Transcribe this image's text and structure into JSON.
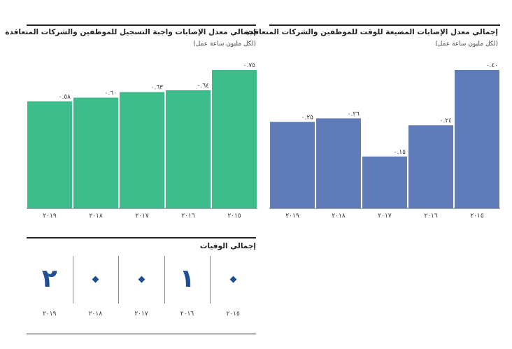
{
  "chart_data": [
    {
      "type": "bar",
      "title": "إجمالي معدل الإصابات واجبة التسجيل للموظفين والشركات المتعاقدة",
      "subtitle": "(لكل مليون ساعة عمل)",
      "categories": [
        "٢٠١٩",
        "٢٠١٨",
        "٢٠١٧",
        "٢٠١٦",
        "٢٠١٥"
      ],
      "values": [
        0.58,
        0.6,
        0.63,
        0.64,
        0.75
      ],
      "value_labels": [
        "٠.٥٨",
        "٠.٦٠",
        "٠.٦٣",
        "٠.٦٤",
        "٠.٧٥"
      ],
      "ylim": [
        0,
        0.75
      ],
      "color": "#3dbd8c",
      "grid": false
    },
    {
      "type": "bar",
      "title": "إجمالي معدل الإصابات المضيعة للوقت للموظفين والشركات المتعاقدة",
      "subtitle": "(لكل مليون ساعة عمل)",
      "categories": [
        "٢٠١٩",
        "٢٠١٨",
        "٢٠١٧",
        "٢٠١٦",
        "٢٠١٥"
      ],
      "values": [
        0.25,
        0.26,
        0.15,
        0.24,
        0.4
      ],
      "value_labels": [
        "٠.٢٥",
        "٠.٢٦",
        "٠.١٥",
        "٠.٢٤",
        "٠.٤٠"
      ],
      "ylim": [
        0,
        0.4
      ],
      "color": "#5f7bb8",
      "grid": false
    },
    {
      "type": "table",
      "title": "إجمالي الوفيات",
      "categories": [
        "٢٠١٩",
        "٢٠١٨",
        "٢٠١٧",
        "٢٠١٦",
        "٢٠١٥"
      ],
      "values": [
        2,
        0,
        0,
        1,
        0
      ],
      "value_labels": [
        "٢",
        "٠",
        "٠",
        "١",
        "٠"
      ],
      "color": "#1f4e96"
    }
  ]
}
